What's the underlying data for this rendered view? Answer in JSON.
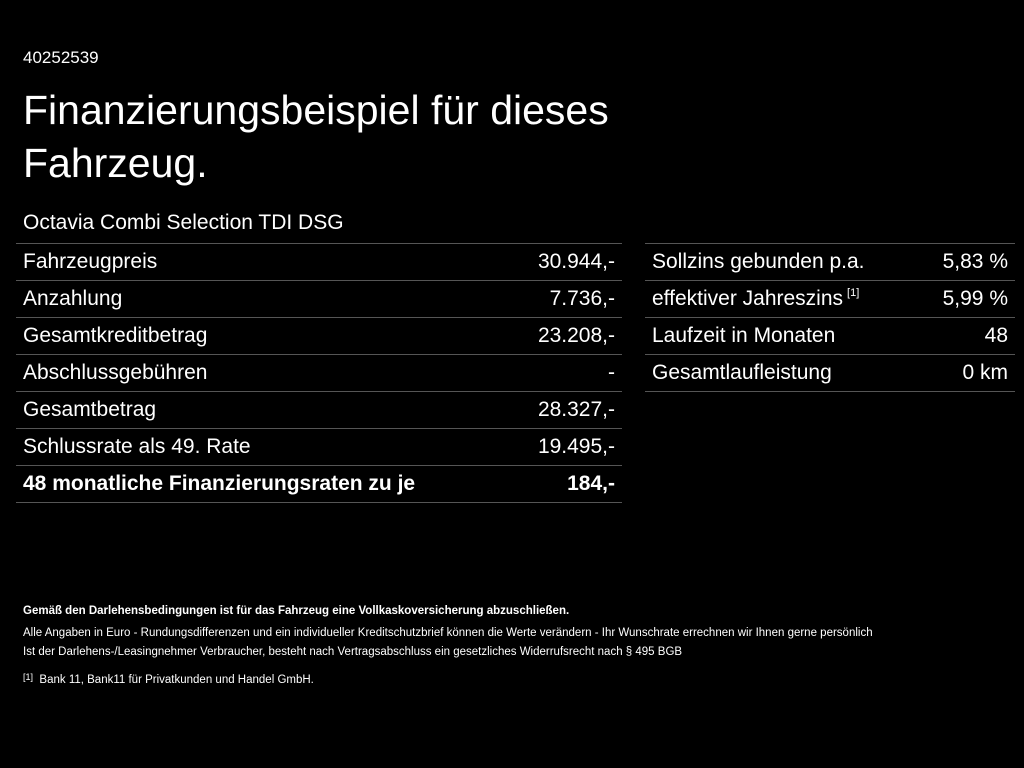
{
  "header": {
    "id": "40252539",
    "title_line1": "Finanzierungsbeispiel für dieses",
    "title_line2": "Fahrzeug.",
    "model": "Octavia Combi Selection TDI DSG"
  },
  "left_table": {
    "rows": [
      [
        "Fahrzeugpreis",
        "30.944,-"
      ],
      [
        "Anzahlung",
        "7.736,-"
      ],
      [
        "Gesamtkreditbetrag",
        "23.208,-"
      ],
      [
        "Abschlussgebühren",
        "-"
      ],
      [
        "Gesamtbetrag",
        "28.327,-"
      ],
      [
        "Schlussrate als 49. Rate",
        "19.495,-"
      ],
      [
        "48 monatliche Finanzierungsraten zu je",
        "184,-"
      ]
    ]
  },
  "right_table": {
    "rows": [
      [
        "Sollzins gebunden p.a.",
        "5,83 %"
      ],
      [
        "effektiver Jahreszins",
        "5,99 %",
        "[1]"
      ],
      [
        "Laufzeit in Monaten",
        "48"
      ],
      [
        "Gesamtlaufleistung",
        "0 km"
      ]
    ]
  },
  "footer": {
    "note_bold": "Gemäß den Darlehensbedingungen ist für das Fahrzeug eine Vollkaskoversicherung abzuschließen.",
    "note1": "Alle Angaben in Euro - Rundungsdifferenzen und ein individueller Kreditschutzbrief können die Werte verändern - Ihr Wunschrate errechnen wir Ihnen gerne persönlich",
    "note2": "Ist der Darlehens-/Leasingnehmer Verbraucher, besteht nach Vertragsabschluss ein gesetzliches Widerrufsrecht nach § 495 BGB",
    "footnote_marker": "[1]",
    "footnote_text": "Bank 11, Bank11 für Privatkunden und Handel GmbH."
  }
}
